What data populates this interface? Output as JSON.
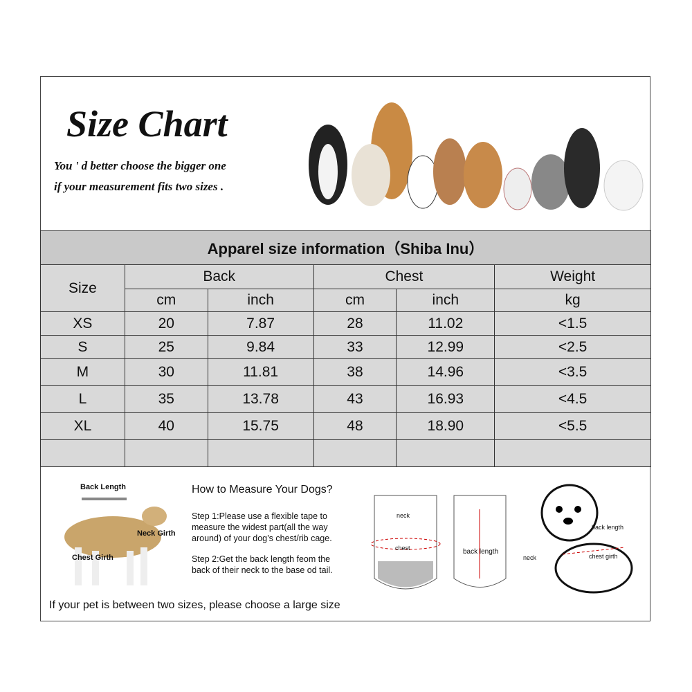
{
  "header": {
    "title": "Size Chart",
    "subtitle_line1": "You ' d better choose the bigger one",
    "subtitle_line2": "if your measurement fits two sizes ."
  },
  "table": {
    "title": "Apparel  size  information（Shiba Inu）",
    "groups": [
      "Size",
      "Back",
      "Chest",
      "Weight"
    ],
    "units": [
      "cm",
      "inch",
      "cm",
      "inch",
      "kg"
    ],
    "rows": [
      [
        "XS",
        "20",
        "7.87",
        "28",
        "11.02",
        "<1.5"
      ],
      [
        "S",
        "25",
        "9.84",
        "33",
        "12.99",
        "<2.5"
      ],
      [
        "M",
        "30",
        "11.81",
        "38",
        "14.96",
        "<3.5"
      ],
      [
        "L",
        "35",
        "13.78",
        "43",
        "16.93",
        "<4.5"
      ],
      [
        "XL",
        "40",
        "15.75",
        "48",
        "18.90",
        "<5.5"
      ],
      [
        "",
        "",
        "",
        "",
        "",
        ""
      ]
    ]
  },
  "measure": {
    "dog_labels": {
      "back": "Back Length",
      "neck": "Neck Girth",
      "chest": "Chest Girth"
    },
    "heading": "How to Measure Your Dogs?",
    "step1": "Step 1:Please use a flexible tape to measure the widest part(all the way around) of your dog’s chest/rib cage.",
    "step2": "Step 2:Get the back length feom the back of their neck to the base od tail.",
    "note": "If your pet is between two sizes, please choose a large size",
    "vest_labels": {
      "neck": "neck",
      "chest": "chest",
      "back": "back length"
    },
    "cartoon_labels": {
      "back": "back length",
      "neck": "neck",
      "chest": "chest girth"
    }
  }
}
